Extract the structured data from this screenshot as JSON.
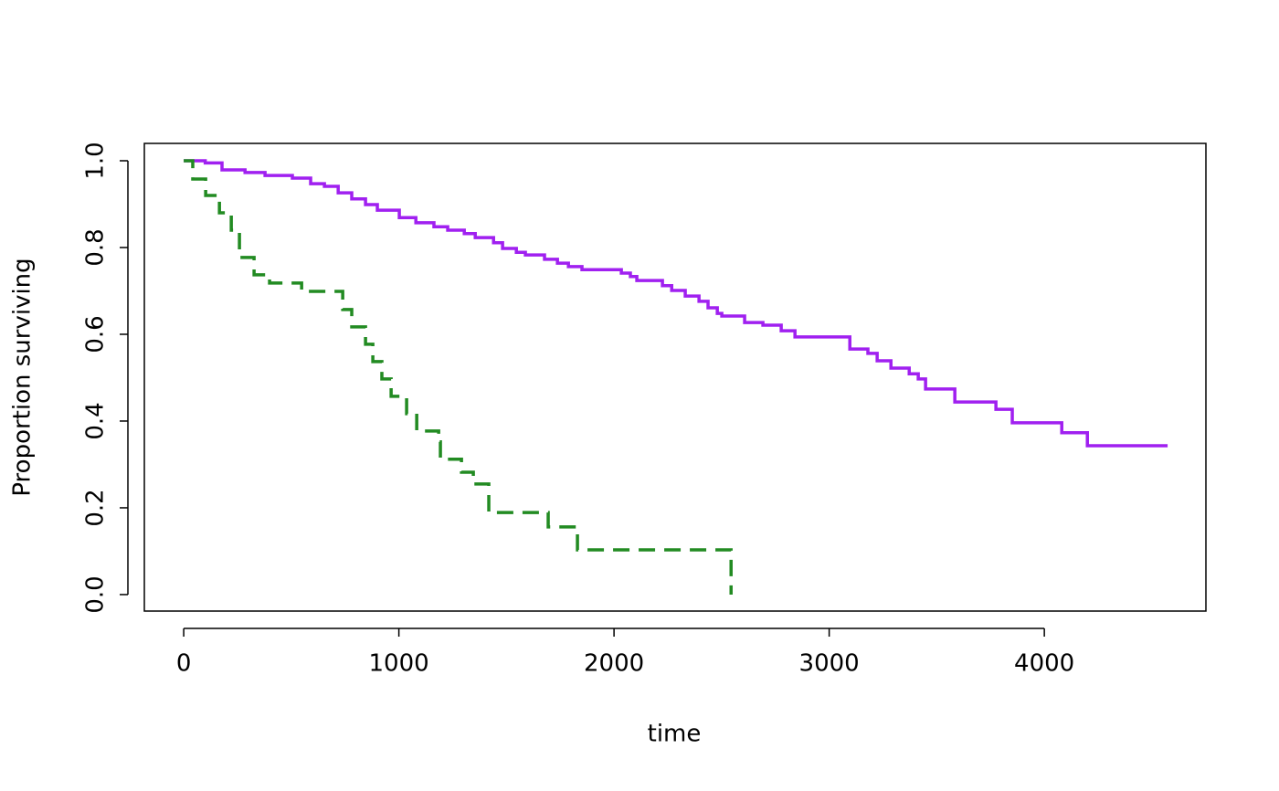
{
  "chart_data": {
    "type": "line",
    "step": "post",
    "xlabel": "time",
    "ylabel": "Proportion surviving",
    "xlim": [
      -183,
      4751
    ],
    "ylim": [
      -0.038,
      1.04
    ],
    "xticks": [
      0,
      1000,
      2000,
      3000,
      4000
    ],
    "yticks": [
      {
        "value": 0,
        "label": "0.0"
      },
      0.2,
      0.4,
      0.6,
      0.8,
      {
        "value": 1,
        "label": "1.0"
      }
    ],
    "series": [
      {
        "color": "#a020f0",
        "linestyle": "solid",
        "x": [
          0,
          100,
          178,
          285,
          378,
          505,
          590,
          654,
          718,
          781,
          845,
          900,
          1002,
          1079,
          1163,
          1227,
          1304,
          1355,
          1440,
          1482,
          1546,
          1588,
          1677,
          1737,
          1788,
          1851,
          2034,
          2076,
          2106,
          2225,
          2268,
          2331,
          2395,
          2437,
          2480,
          2501,
          2607,
          2692,
          2777,
          2841,
          3096,
          3180,
          3223,
          3287,
          3372,
          3414,
          3448,
          3584,
          3775,
          3851,
          4081,
          4200,
          4573
        ],
        "values": [
          1.0,
          0.995,
          0.979,
          0.973,
          0.966,
          0.96,
          0.947,
          0.941,
          0.926,
          0.912,
          0.899,
          0.886,
          0.869,
          0.857,
          0.848,
          0.84,
          0.832,
          0.823,
          0.811,
          0.798,
          0.789,
          0.783,
          0.773,
          0.764,
          0.756,
          0.749,
          0.741,
          0.733,
          0.724,
          0.712,
          0.701,
          0.688,
          0.676,
          0.661,
          0.648,
          0.642,
          0.627,
          0.621,
          0.608,
          0.594,
          0.566,
          0.556,
          0.539,
          0.522,
          0.509,
          0.497,
          0.474,
          0.444,
          0.427,
          0.396,
          0.373,
          0.343,
          0.343
        ]
      },
      {
        "color": "#228b22",
        "linestyle": "dashed",
        "x": [
          0,
          42,
          102,
          166,
          221,
          259,
          327,
          399,
          548,
          739,
          781,
          845,
          879,
          921,
          964,
          1036,
          1083,
          1185,
          1193,
          1291,
          1346,
          1418,
          1694,
          1830,
          2544
        ],
        "values": [
          1.0,
          0.958,
          0.92,
          0.88,
          0.84,
          0.777,
          0.737,
          0.718,
          0.699,
          0.657,
          0.617,
          0.577,
          0.537,
          0.497,
          0.457,
          0.417,
          0.377,
          0.352,
          0.312,
          0.282,
          0.255,
          0.189,
          0.156,
          0.103,
          0.0
        ]
      }
    ]
  }
}
